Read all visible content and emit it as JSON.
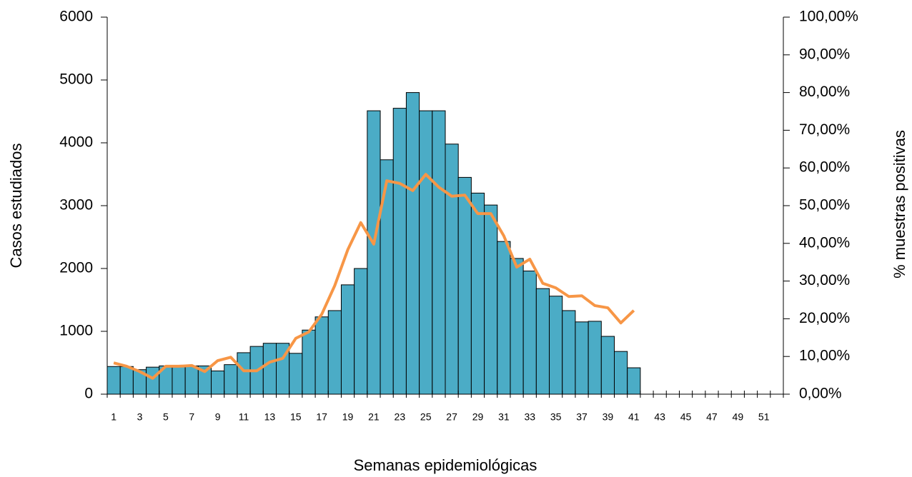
{
  "chart_data": {
    "type": "bar-line",
    "xlabel": "Semanas epidemiológicas",
    "ylabel": "Casos estudiados",
    "y2label": "% muestras positivas",
    "categories": [
      "1",
      null,
      "3",
      null,
      "5",
      null,
      "7",
      null,
      "9",
      null,
      "11",
      null,
      "13",
      null,
      "15",
      null,
      "17",
      null,
      "19",
      null,
      "21",
      null,
      "23",
      null,
      "25",
      null,
      "27",
      null,
      "29",
      null,
      "31",
      null,
      "33",
      null,
      "35",
      null,
      "37",
      null,
      "39",
      null,
      "41",
      null,
      "43",
      null,
      "45",
      null,
      "47",
      null,
      "49",
      null,
      "51",
      null
    ],
    "series": [
      {
        "type": "bar",
        "color": "#4bacc6",
        "values": [
          440,
          440,
          390,
          430,
          450,
          450,
          450,
          450,
          370,
          470,
          660,
          760,
          810,
          810,
          650,
          1020,
          1230,
          1330,
          1740,
          2000,
          4510,
          3730,
          4550,
          4800,
          4510,
          4510,
          3980,
          3450,
          3200,
          3010,
          2430,
          2160,
          1960,
          1680,
          1560,
          1330,
          1150,
          1160,
          920,
          680,
          420,
          null,
          null,
          null,
          null,
          null,
          null,
          null,
          null,
          null,
          null,
          null
        ]
      },
      {
        "type": "line",
        "axis": "y2",
        "color": "#f79646",
        "values": [
          8.3,
          7.4,
          6,
          4.2,
          7.4,
          7.4,
          7.6,
          6,
          8.9,
          9.8,
          6.2,
          6.2,
          8.5,
          9.5,
          14.8,
          16.5,
          21.2,
          28.8,
          38.3,
          45.5,
          39.8,
          56.6,
          55.9,
          54,
          58.3,
          54.9,
          52.5,
          52.8,
          47.9,
          47.9,
          42,
          33.7,
          35.8,
          29.4,
          28.2,
          25.9,
          26.1,
          23.5,
          22.9,
          18.9,
          22.2,
          null,
          null,
          null,
          null,
          null,
          null,
          null,
          null,
          null,
          null,
          null
        ]
      }
    ],
    "ylim": [
      0,
      6000
    ],
    "yticks": [
      0,
      1000,
      2000,
      3000,
      4000,
      5000,
      6000
    ],
    "y2lim": [
      0,
      100
    ],
    "y2ticks": [
      {
        "value": 0,
        "label": "0,00%"
      },
      {
        "value": 10,
        "label": "10,00%"
      },
      {
        "value": 20,
        "label": "20,00%"
      },
      {
        "value": 30,
        "label": "30,00%"
      },
      {
        "value": 40,
        "label": "40,00%"
      },
      {
        "value": 50,
        "label": "50,00%"
      },
      {
        "value": 60,
        "label": "60,00%"
      },
      {
        "value": 70,
        "label": "70,00%"
      },
      {
        "value": 80,
        "label": "80,00%"
      },
      {
        "value": 90,
        "label": "90,00%"
      },
      {
        "value": 100,
        "label": "100,00%"
      }
    ]
  }
}
